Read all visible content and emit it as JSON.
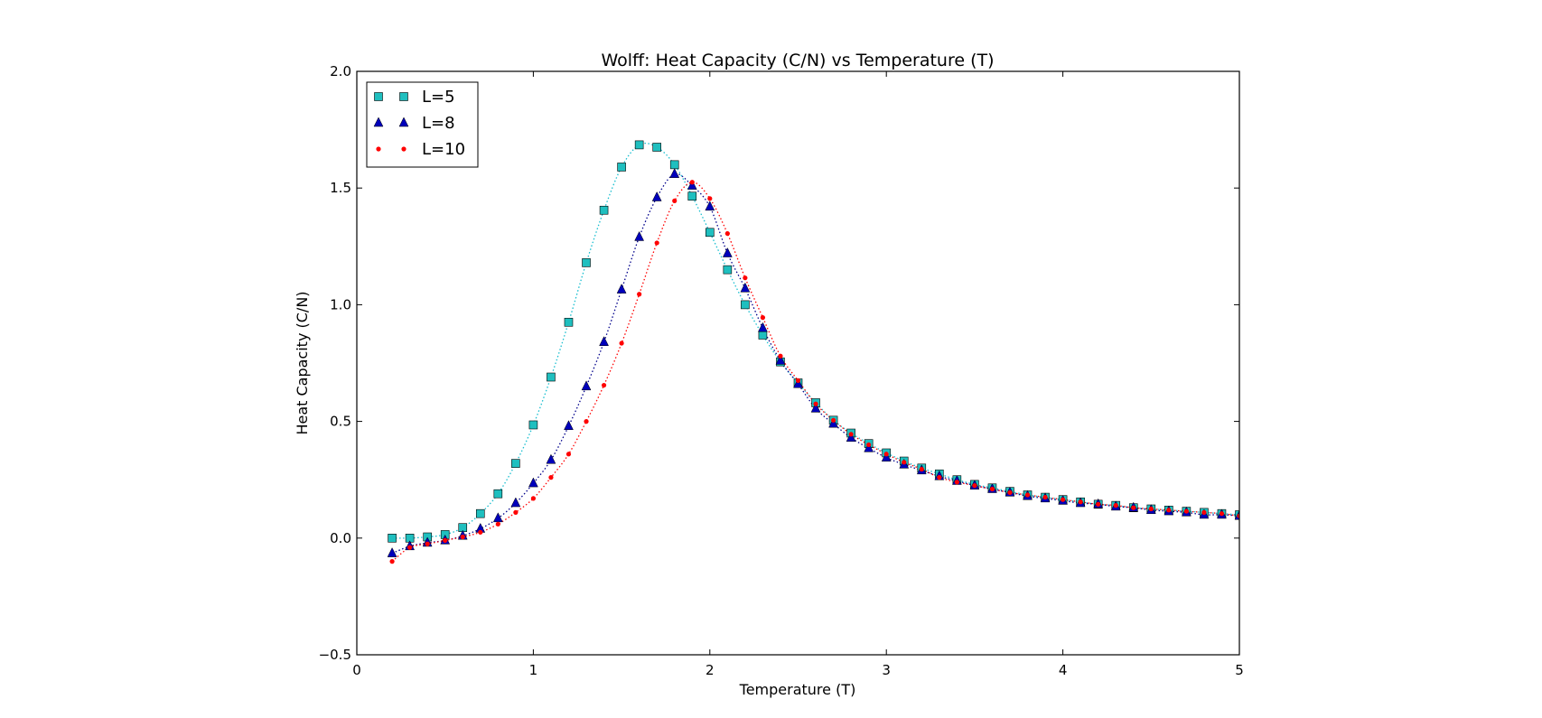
{
  "chart_data": {
    "type": "scatter",
    "title": "Wolff: Heat Capacity (C/N) vs Temperature (T)",
    "xlabel": "Temperature (T)",
    "ylabel": "Heat Capacity (C/N)",
    "xlim": [
      0,
      5
    ],
    "ylim": [
      -0.5,
      2.0
    ],
    "xticks": [
      0,
      1,
      2,
      3,
      4,
      5
    ],
    "xtick_labels": [
      "0",
      "1",
      "2",
      "3",
      "4",
      "5"
    ],
    "yticks": [
      -0.5,
      0.0,
      0.5,
      1.0,
      1.5,
      2.0
    ],
    "ytick_labels": [
      "−0.5",
      "0.0",
      "0.5",
      "1.0",
      "1.5",
      "2.0"
    ],
    "grid": false,
    "legend_position": "top-left",
    "x": [
      0.2,
      0.3,
      0.4,
      0.5,
      0.6,
      0.7,
      0.8,
      0.9,
      1.0,
      1.1,
      1.2,
      1.3,
      1.4,
      1.5,
      1.6,
      1.7,
      1.8,
      1.9,
      2.0,
      2.1,
      2.2,
      2.3,
      2.4,
      2.5,
      2.6,
      2.7,
      2.8,
      2.9,
      3.0,
      3.1,
      3.2,
      3.3,
      3.4,
      3.5,
      3.6,
      3.7,
      3.8,
      3.9,
      4.0,
      4.1,
      4.2,
      4.3,
      4.4,
      4.5,
      4.6,
      4.7,
      4.8,
      4.9,
      5.0
    ],
    "series": [
      {
        "name": "L=5",
        "marker": "square",
        "color": "#1fbfbf",
        "line_color": "#17becf",
        "values": [
          0.0,
          0.0,
          0.005,
          0.015,
          0.045,
          0.105,
          0.19,
          0.32,
          0.485,
          0.69,
          0.925,
          1.18,
          1.405,
          1.59,
          1.685,
          1.675,
          1.6,
          1.465,
          1.31,
          1.15,
          1.0,
          0.87,
          0.755,
          0.665,
          0.58,
          0.505,
          0.45,
          0.405,
          0.365,
          0.33,
          0.3,
          0.275,
          0.25,
          0.23,
          0.215,
          0.2,
          0.185,
          0.175,
          0.165,
          0.155,
          0.145,
          0.14,
          0.13,
          0.125,
          0.12,
          0.115,
          0.11,
          0.105,
          0.1
        ]
      },
      {
        "name": "L=8",
        "marker": "triangle",
        "color": "#0000bb",
        "line_color": "#00008b",
        "values": [
          -0.065,
          -0.035,
          -0.02,
          -0.01,
          0.01,
          0.04,
          0.085,
          0.15,
          0.235,
          0.335,
          0.48,
          0.65,
          0.84,
          1.065,
          1.29,
          1.46,
          1.56,
          1.51,
          1.42,
          1.22,
          1.07,
          0.9,
          0.76,
          0.66,
          0.555,
          0.49,
          0.43,
          0.385,
          0.345,
          0.315,
          0.29,
          0.265,
          0.245,
          0.225,
          0.21,
          0.195,
          0.18,
          0.17,
          0.16,
          0.15,
          0.145,
          0.135,
          0.13,
          0.12,
          0.115,
          0.11,
          0.1,
          0.1,
          0.095
        ]
      },
      {
        "name": "L=10",
        "marker": "dot",
        "color": "#ff0000",
        "line_color": "#ff0000",
        "values": [
          -0.1,
          -0.04,
          -0.025,
          -0.01,
          0.005,
          0.025,
          0.06,
          0.11,
          0.17,
          0.26,
          0.36,
          0.5,
          0.655,
          0.835,
          1.045,
          1.265,
          1.445,
          1.525,
          1.455,
          1.305,
          1.115,
          0.945,
          0.78,
          0.675,
          0.575,
          0.505,
          0.445,
          0.4,
          0.36,
          0.325,
          0.295,
          0.26,
          0.24,
          0.225,
          0.21,
          0.195,
          0.185,
          0.175,
          0.165,
          0.155,
          0.145,
          0.14,
          0.13,
          0.125,
          0.12,
          0.115,
          0.11,
          0.105,
          0.095
        ]
      }
    ]
  }
}
